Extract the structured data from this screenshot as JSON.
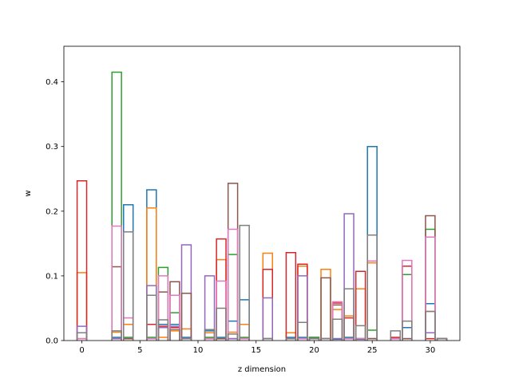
{
  "chart_data": {
    "type": "step-histogram",
    "xlabel": "z dimension",
    "ylabel": "w",
    "xlim": [
      -1.55,
      32.55
    ],
    "ylim": [
      0,
      0.455
    ],
    "xticks": [
      0,
      5,
      10,
      15,
      20,
      25,
      30
    ],
    "yticks": [
      0.0,
      0.1,
      0.2,
      0.3,
      0.4
    ],
    "ytick_labels": [
      "0.0",
      "0.1",
      "0.2",
      "0.3",
      "0.4"
    ],
    "grid": false,
    "legend": "none",
    "bins": [
      0,
      1,
      2,
      3,
      4,
      5,
      6,
      7,
      8,
      9,
      10,
      11,
      12,
      13,
      14,
      15,
      16,
      17,
      18,
      19,
      20,
      21,
      22,
      23,
      24,
      25,
      26,
      27,
      28,
      29,
      30,
      31
    ],
    "series": [
      {
        "color": "#1f77b4",
        "values": [
          0,
          0,
          0,
          0.005,
          0.21,
          0,
          0.233,
          0.025,
          0.025,
          0.005,
          0,
          0.015,
          0.005,
          0.03,
          0.063,
          0,
          0.003,
          0,
          0.005,
          0.005,
          0.005,
          0.003,
          0.002,
          0.005,
          0.002,
          0.3,
          0,
          0,
          0.02,
          0,
          0.057,
          0.003
        ]
      },
      {
        "color": "#ff7f0e",
        "values": [
          0.105,
          0,
          0,
          0.013,
          0.025,
          0,
          0.205,
          0.005,
          0.015,
          0.018,
          0,
          0.012,
          0.125,
          0.013,
          0.025,
          0,
          0.135,
          0,
          0.012,
          0.115,
          0.003,
          0.11,
          0.048,
          0.038,
          0.08,
          0.12,
          0,
          0.003,
          0.115,
          0,
          0.045,
          0.003
        ]
      },
      {
        "color": "#2ca02c",
        "values": [
          0,
          0,
          0,
          0.415,
          0.005,
          0,
          0.005,
          0.113,
          0.043,
          0.003,
          0,
          0.005,
          0.003,
          0.133,
          0.005,
          0,
          0.003,
          0,
          0.003,
          0.003,
          0.005,
          0.003,
          0.003,
          0.003,
          0.003,
          0.016,
          0,
          0.003,
          0.102,
          0,
          0.172,
          0.003
        ]
      },
      {
        "color": "#d62728",
        "values": [
          0.247,
          0,
          0,
          0.003,
          0.003,
          0,
          0.025,
          0.022,
          0.02,
          0.003,
          0,
          0.003,
          0.157,
          0.003,
          0.003,
          0,
          0.11,
          0,
          0.136,
          0.118,
          0.003,
          0.003,
          0.058,
          0.035,
          0.107,
          0.003,
          0,
          0.005,
          0.115,
          0,
          0.003,
          0.003
        ]
      },
      {
        "color": "#9467bd",
        "values": [
          0.022,
          0,
          0,
          0.003,
          0.003,
          0,
          0.085,
          0.02,
          0.022,
          0.148,
          0,
          0.1,
          0.003,
          0.003,
          0.003,
          0,
          0.066,
          0,
          0.003,
          0.1,
          0.003,
          0.003,
          0.003,
          0.196,
          0.003,
          0.003,
          0,
          0.003,
          0.003,
          0,
          0.012,
          0.003
        ]
      },
      {
        "color": "#8c564b",
        "values": [
          0.003,
          0,
          0,
          0.114,
          0.003,
          0,
          0.003,
          0.075,
          0.091,
          0.073,
          0,
          0.003,
          0.003,
          0.243,
          0.003,
          0,
          0.003,
          0,
          0.003,
          0.003,
          0.003,
          0.097,
          0.055,
          0.003,
          0.003,
          0.003,
          0,
          0.003,
          0.003,
          0,
          0.193,
          0.003
        ]
      },
      {
        "color": "#e377c2",
        "values": [
          0.003,
          0,
          0,
          0.177,
          0.035,
          0,
          0.003,
          0.1,
          0.07,
          0.003,
          0,
          0.003,
          0.092,
          0.172,
          0.003,
          0,
          0.003,
          0,
          0.003,
          0.003,
          0.003,
          0.003,
          0.06,
          0.003,
          0.003,
          0.123,
          0,
          0.003,
          0.124,
          0,
          0.16,
          0.003
        ]
      },
      {
        "color": "#7f7f7f",
        "values": [
          0.012,
          0,
          0,
          0.015,
          0.168,
          0,
          0.07,
          0.032,
          0.017,
          0.003,
          0,
          0.017,
          0.05,
          0.01,
          0.178,
          0,
          0.003,
          0,
          0.003,
          0.028,
          0.003,
          0.003,
          0.033,
          0.08,
          0.023,
          0.163,
          0,
          0.015,
          0.03,
          0,
          0.045,
          0.003
        ]
      }
    ]
  }
}
